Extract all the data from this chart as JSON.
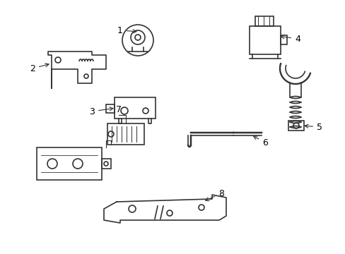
{
  "title": "",
  "background_color": "#ffffff",
  "line_color": "#333333",
  "line_width": 1.2,
  "label_color": "#000000",
  "figsize": [
    4.89,
    3.6
  ],
  "dpi": 100,
  "components": {
    "part1_label": "1",
    "part2_label": "2",
    "part3_label": "3",
    "part4_label": "4",
    "part5_label": "5",
    "part6_label": "6",
    "part7_label": "7",
    "part8_label": "8"
  }
}
